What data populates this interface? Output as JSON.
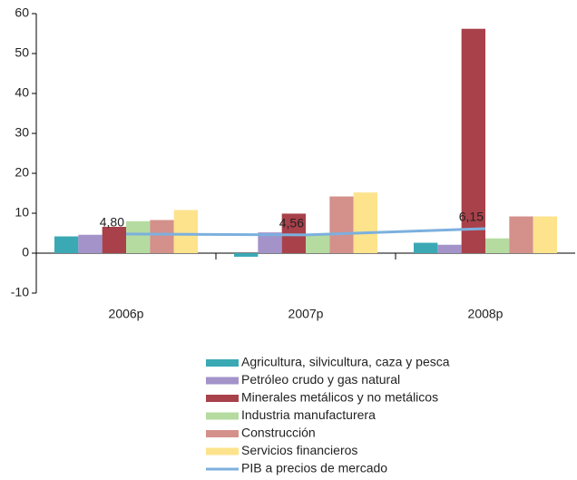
{
  "chart_data": {
    "type": "bar",
    "categories": [
      "2006p",
      "2007p",
      "2008p"
    ],
    "ylim": [
      -10,
      60
    ],
    "yticks": [
      -10,
      0,
      10,
      20,
      30,
      40,
      50,
      60
    ],
    "series": [
      {
        "name": "Agricultura, silvicultura, caza y pesca",
        "color": "#3aa9b4",
        "values": [
          4.2,
          -0.9,
          2.6
        ]
      },
      {
        "name": "Petróleo crudo y gas natural",
        "color": "#a393c9",
        "values": [
          4.6,
          5.2,
          2.1
        ]
      },
      {
        "name": "Minerales metálicos y no metálicos",
        "color": "#a8414a",
        "values": [
          6.6,
          9.9,
          56.2
        ]
      },
      {
        "name": "Industria manufacturera",
        "color": "#b5dba0",
        "values": [
          8.0,
          4.8,
          3.7
        ]
      },
      {
        "name": "Construcción",
        "color": "#d4908b",
        "values": [
          8.3,
          14.2,
          9.2
        ]
      },
      {
        "name": "Servicios financieros",
        "color": "#fde38c",
        "values": [
          10.8,
          15.2,
          9.2
        ]
      },
      {
        "name": "PIB a precios de mercado",
        "color": "#7cb0de",
        "type": "line",
        "values": [
          4.8,
          4.56,
          6.15
        ],
        "value_labels": [
          "4,80",
          "4,56",
          "6,15"
        ]
      }
    ]
  }
}
